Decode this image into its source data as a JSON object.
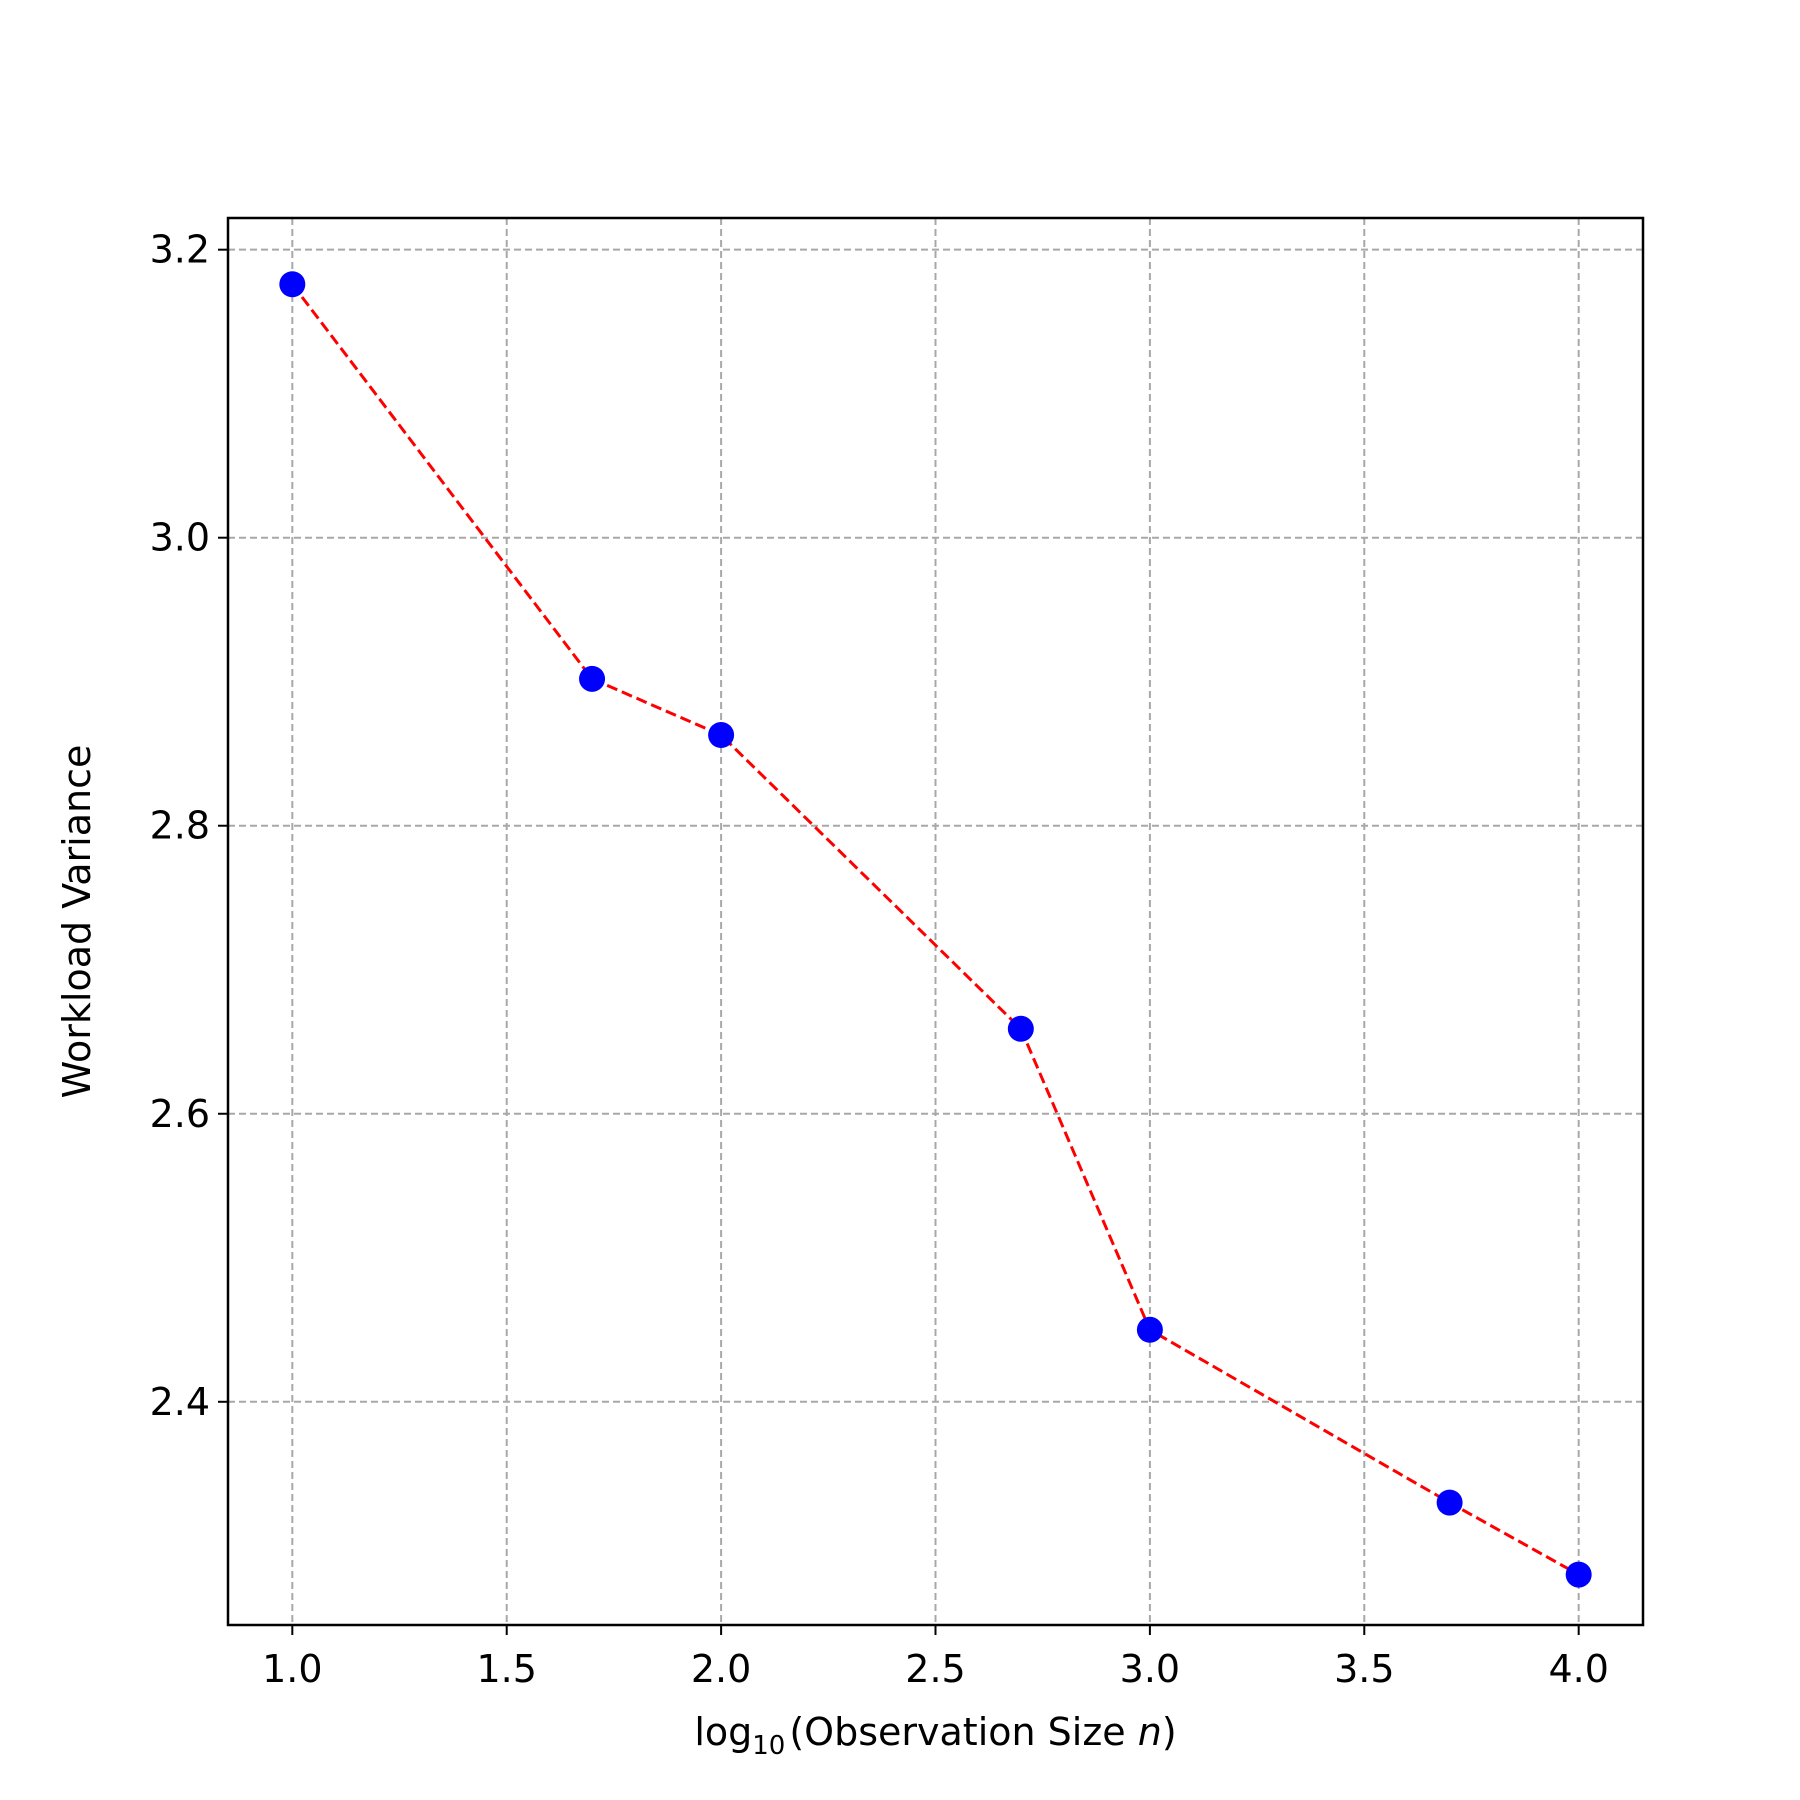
{
  "chart_data": {
    "type": "line",
    "title": "",
    "xlabel": {
      "prefix": "log",
      "subscript": "10",
      "main": "(Observation Size ",
      "italic": "n",
      "suffix": ")"
    },
    "ylabel": "Workload Variance",
    "xlim": [
      0.85,
      4.15
    ],
    "ylim": [
      2.245,
      3.222
    ],
    "xticks": [
      1.0,
      1.5,
      2.0,
      2.5,
      3.0,
      3.5,
      4.0
    ],
    "xtick_labels": [
      "1.0",
      "1.5",
      "2.0",
      "2.5",
      "3.0",
      "3.5",
      "4.0"
    ],
    "yticks": [
      2.4,
      2.6,
      2.8,
      3.0,
      3.2
    ],
    "ytick_labels": [
      "2.4",
      "2.6",
      "2.8",
      "3.0",
      "3.2"
    ],
    "grid": true,
    "series": [
      {
        "x": [
          1.0,
          1.699,
          2.0,
          2.699,
          3.0,
          3.699,
          4.0
        ],
        "y": [
          3.176,
          2.902,
          2.863,
          2.659,
          2.45,
          2.33,
          2.28
        ],
        "marker_color": "#0000ff",
        "line_color": "#ff0000",
        "line_style": "dashed"
      }
    ]
  }
}
